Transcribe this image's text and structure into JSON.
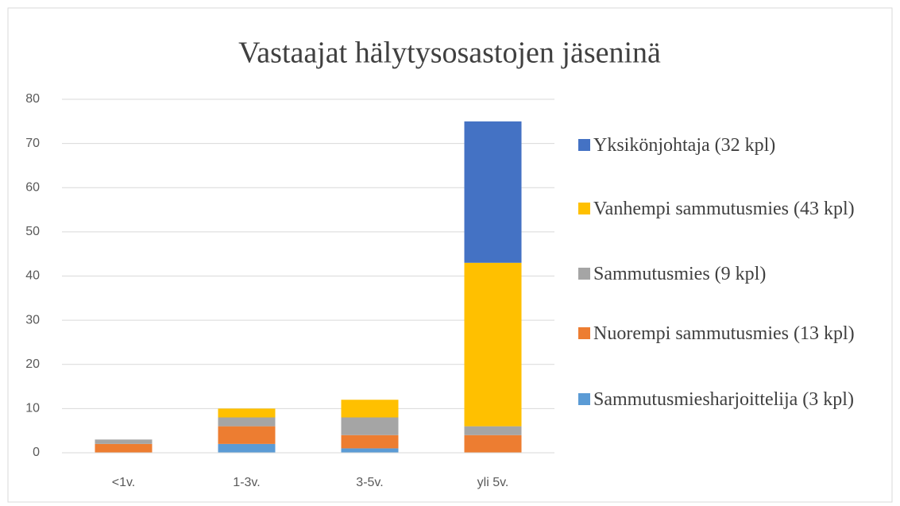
{
  "chart_data": {
    "type": "stacked_bar",
    "title": "Vastaajat hälytysosastojen jäseninä",
    "categories": [
      "<1v.",
      "1-3v.",
      "3-5v.",
      "yli 5v."
    ],
    "series": [
      {
        "name": "Sammutusmiesharjoittelija (3 kpl)",
        "color": "#5b9bd5",
        "values": [
          0,
          2,
          1,
          0
        ]
      },
      {
        "name": "Nuorempi sammutusmies (13 kpl)",
        "color": "#ed7d31",
        "values": [
          2,
          4,
          3,
          4
        ]
      },
      {
        "name": "Sammutusmies (9 kpl)",
        "color": "#a5a5a5",
        "values": [
          1,
          2,
          4,
          2
        ]
      },
      {
        "name": "Vanhempi sammutusmies (43 kpl)",
        "color": "#ffc000",
        "values": [
          0,
          2,
          4,
          37
        ]
      },
      {
        "name": "Yksikönjohtaja (32 kpl)",
        "color": "#4472c4",
        "values": [
          0,
          0,
          0,
          32
        ]
      }
    ],
    "ylim": [
      0,
      80
    ],
    "yticks": [
      0,
      10,
      20,
      30,
      40,
      50,
      60,
      70,
      80
    ],
    "grid": true,
    "legend": "right"
  }
}
